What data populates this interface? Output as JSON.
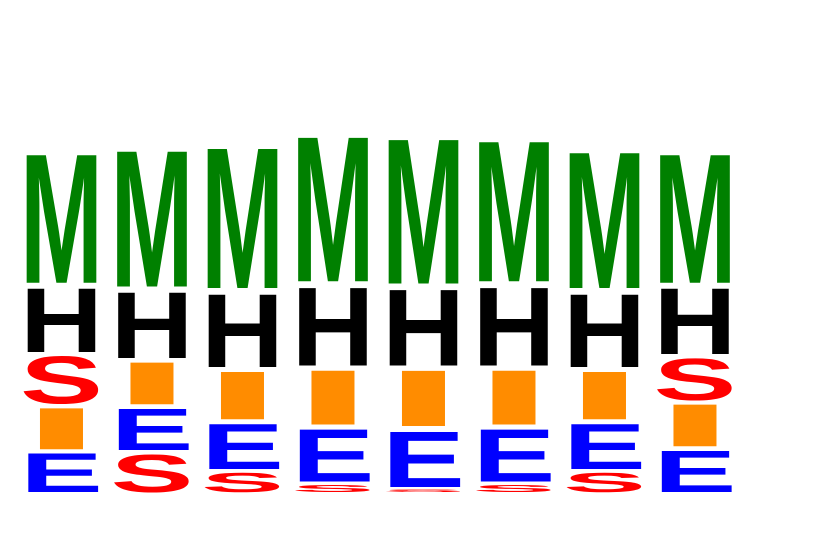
{
  "chart_data": {
    "type": "sequence-logo",
    "title": "",
    "xlabel": "",
    "ylabel": "",
    "positions": [
      1,
      2,
      3,
      4,
      5,
      6,
      7,
      8
    ],
    "colors": {
      "M": "#008000",
      "H": "#000000",
      "S": "#ff0000",
      "I": "#ff8c00",
      "E": "#0000ff"
    },
    "stacks": [
      [
        {
          "letter": "E",
          "value": 0.53
        },
        {
          "letter": "I",
          "value": 0.57
        },
        {
          "letter": "S",
          "value": 0.65
        },
        {
          "letter": "H",
          "value": 0.88
        },
        {
          "letter": "M",
          "value": 1.78
        }
      ],
      [
        {
          "letter": "S",
          "value": 0.52
        },
        {
          "letter": "E",
          "value": 0.57
        },
        {
          "letter": "I",
          "value": 0.58
        },
        {
          "letter": "H",
          "value": 0.91
        },
        {
          "letter": "M",
          "value": 1.88
        }
      ],
      [
        {
          "letter": "S",
          "value": 0.27
        },
        {
          "letter": "E",
          "value": 0.62
        },
        {
          "letter": "I",
          "value": 0.66
        },
        {
          "letter": "H",
          "value": 1.01
        },
        {
          "letter": "M",
          "value": 1.94
        }
      ],
      [
        {
          "letter": "S",
          "value": 0.1
        },
        {
          "letter": "E",
          "value": 0.72
        },
        {
          "letter": "I",
          "value": 0.75
        },
        {
          "letter": "H",
          "value": 1.08
        },
        {
          "letter": "M",
          "value": 2.0
        }
      ],
      [
        {
          "letter": "S",
          "value": 0.03
        },
        {
          "letter": "E",
          "value": 0.77
        },
        {
          "letter": "I",
          "value": 0.77
        },
        {
          "letter": "H",
          "value": 1.05
        },
        {
          "letter": "M",
          "value": 2.0
        }
      ],
      [
        {
          "letter": "S",
          "value": 0.1
        },
        {
          "letter": "E",
          "value": 0.72
        },
        {
          "letter": "I",
          "value": 0.75
        },
        {
          "letter": "H",
          "value": 1.08
        },
        {
          "letter": "M",
          "value": 1.94
        }
      ],
      [
        {
          "letter": "S",
          "value": 0.27
        },
        {
          "letter": "E",
          "value": 0.62
        },
        {
          "letter": "I",
          "value": 0.66
        },
        {
          "letter": "H",
          "value": 1.01
        },
        {
          "letter": "M",
          "value": 1.88
        }
      ],
      [
        {
          "letter": "E",
          "value": 0.57
        },
        {
          "letter": "I",
          "value": 0.58
        },
        {
          "letter": "S",
          "value": 0.57
        },
        {
          "letter": "H",
          "value": 0.91
        },
        {
          "letter": "M",
          "value": 1.78
        }
      ]
    ]
  }
}
